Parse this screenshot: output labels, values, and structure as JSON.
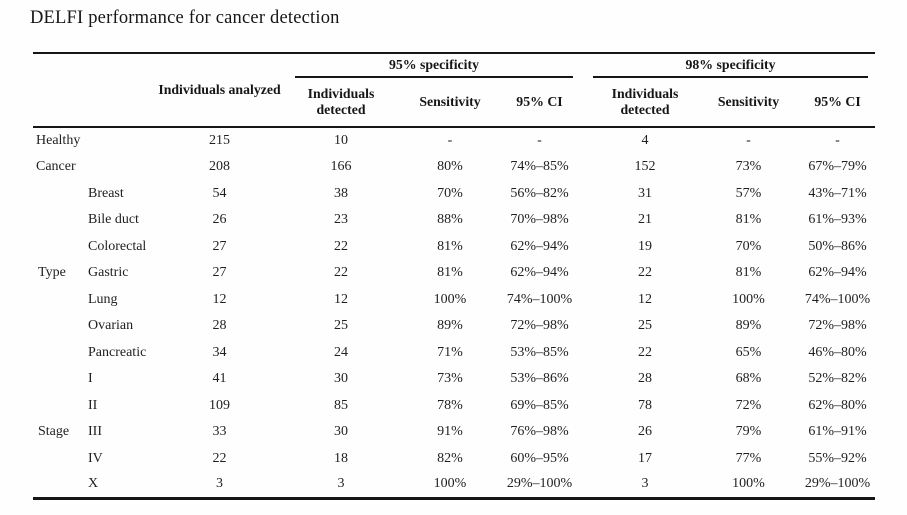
{
  "title": "DELFI performance for cancer detection",
  "table": {
    "analyzed_header": "Individuals analyzed",
    "spec_groups": [
      "95% specificity",
      "98% specificity"
    ],
    "sub_headers": [
      "Individuals detected",
      "Sensitivity",
      "95% CI"
    ],
    "rows": [
      {
        "label": "Healthy",
        "analyzed": "215",
        "d95": "10",
        "s95": "-",
        "ci95": "-",
        "d98": "4",
        "s98": "-",
        "ci98": "-"
      },
      {
        "label": "Cancer",
        "analyzed": "208",
        "d95": "166",
        "s95": "80%",
        "ci95": "74%–85%",
        "d98": "152",
        "s98": "73%",
        "ci98": "67%–79%"
      },
      {
        "group": "",
        "label": "Breast",
        "analyzed": "54",
        "d95": "38",
        "s95": "70%",
        "ci95": "56%–82%",
        "d98": "31",
        "s98": "57%",
        "ci98": "43%–71%"
      },
      {
        "group": "",
        "label": "Bile duct",
        "analyzed": "26",
        "d95": "23",
        "s95": "88%",
        "ci95": "70%–98%",
        "d98": "21",
        "s98": "81%",
        "ci98": "61%–93%"
      },
      {
        "group": "",
        "label": "Colorectal",
        "analyzed": "27",
        "d95": "22",
        "s95": "81%",
        "ci95": "62%–94%",
        "d98": "19",
        "s98": "70%",
        "ci98": "50%–86%"
      },
      {
        "group": "Type",
        "label": "Gastric",
        "analyzed": "27",
        "d95": "22",
        "s95": "81%",
        "ci95": "62%–94%",
        "d98": "22",
        "s98": "81%",
        "ci98": "62%–94%"
      },
      {
        "group": "",
        "label": "Lung",
        "analyzed": "12",
        "d95": "12",
        "s95": "100%",
        "ci95": "74%–100%",
        "d98": "12",
        "s98": "100%",
        "ci98": "74%–100%"
      },
      {
        "group": "",
        "label": "Ovarian",
        "analyzed": "28",
        "d95": "25",
        "s95": "89%",
        "ci95": "72%–98%",
        "d98": "25",
        "s98": "89%",
        "ci98": "72%–98%"
      },
      {
        "group": "",
        "label": "Pancreatic",
        "analyzed": "34",
        "d95": "24",
        "s95": "71%",
        "ci95": "53%–85%",
        "d98": "22",
        "s98": "65%",
        "ci98": "46%–80%"
      },
      {
        "group": "",
        "label": "I",
        "analyzed": "41",
        "d95": "30",
        "s95": "73%",
        "ci95": "53%–86%",
        "d98": "28",
        "s98": "68%",
        "ci98": "52%–82%"
      },
      {
        "group": "",
        "label": "II",
        "analyzed": "109",
        "d95": "85",
        "s95": "78%",
        "ci95": "69%–85%",
        "d98": "78",
        "s98": "72%",
        "ci98": "62%–80%"
      },
      {
        "group": "Stage",
        "label": "III",
        "analyzed": "33",
        "d95": "30",
        "s95": "91%",
        "ci95": "76%–98%",
        "d98": "26",
        "s98": "79%",
        "ci98": "61%–91%"
      },
      {
        "group": "",
        "label": "IV",
        "analyzed": "22",
        "d95": "18",
        "s95": "82%",
        "ci95": "60%–95%",
        "d98": "17",
        "s98": "77%",
        "ci98": "55%–92%"
      },
      {
        "group": "",
        "label": "X",
        "analyzed": "3",
        "d95": "3",
        "s95": "100%",
        "ci95": "29%–100%",
        "d98": "3",
        "s98": "100%",
        "ci98": "29%–100%"
      }
    ]
  }
}
